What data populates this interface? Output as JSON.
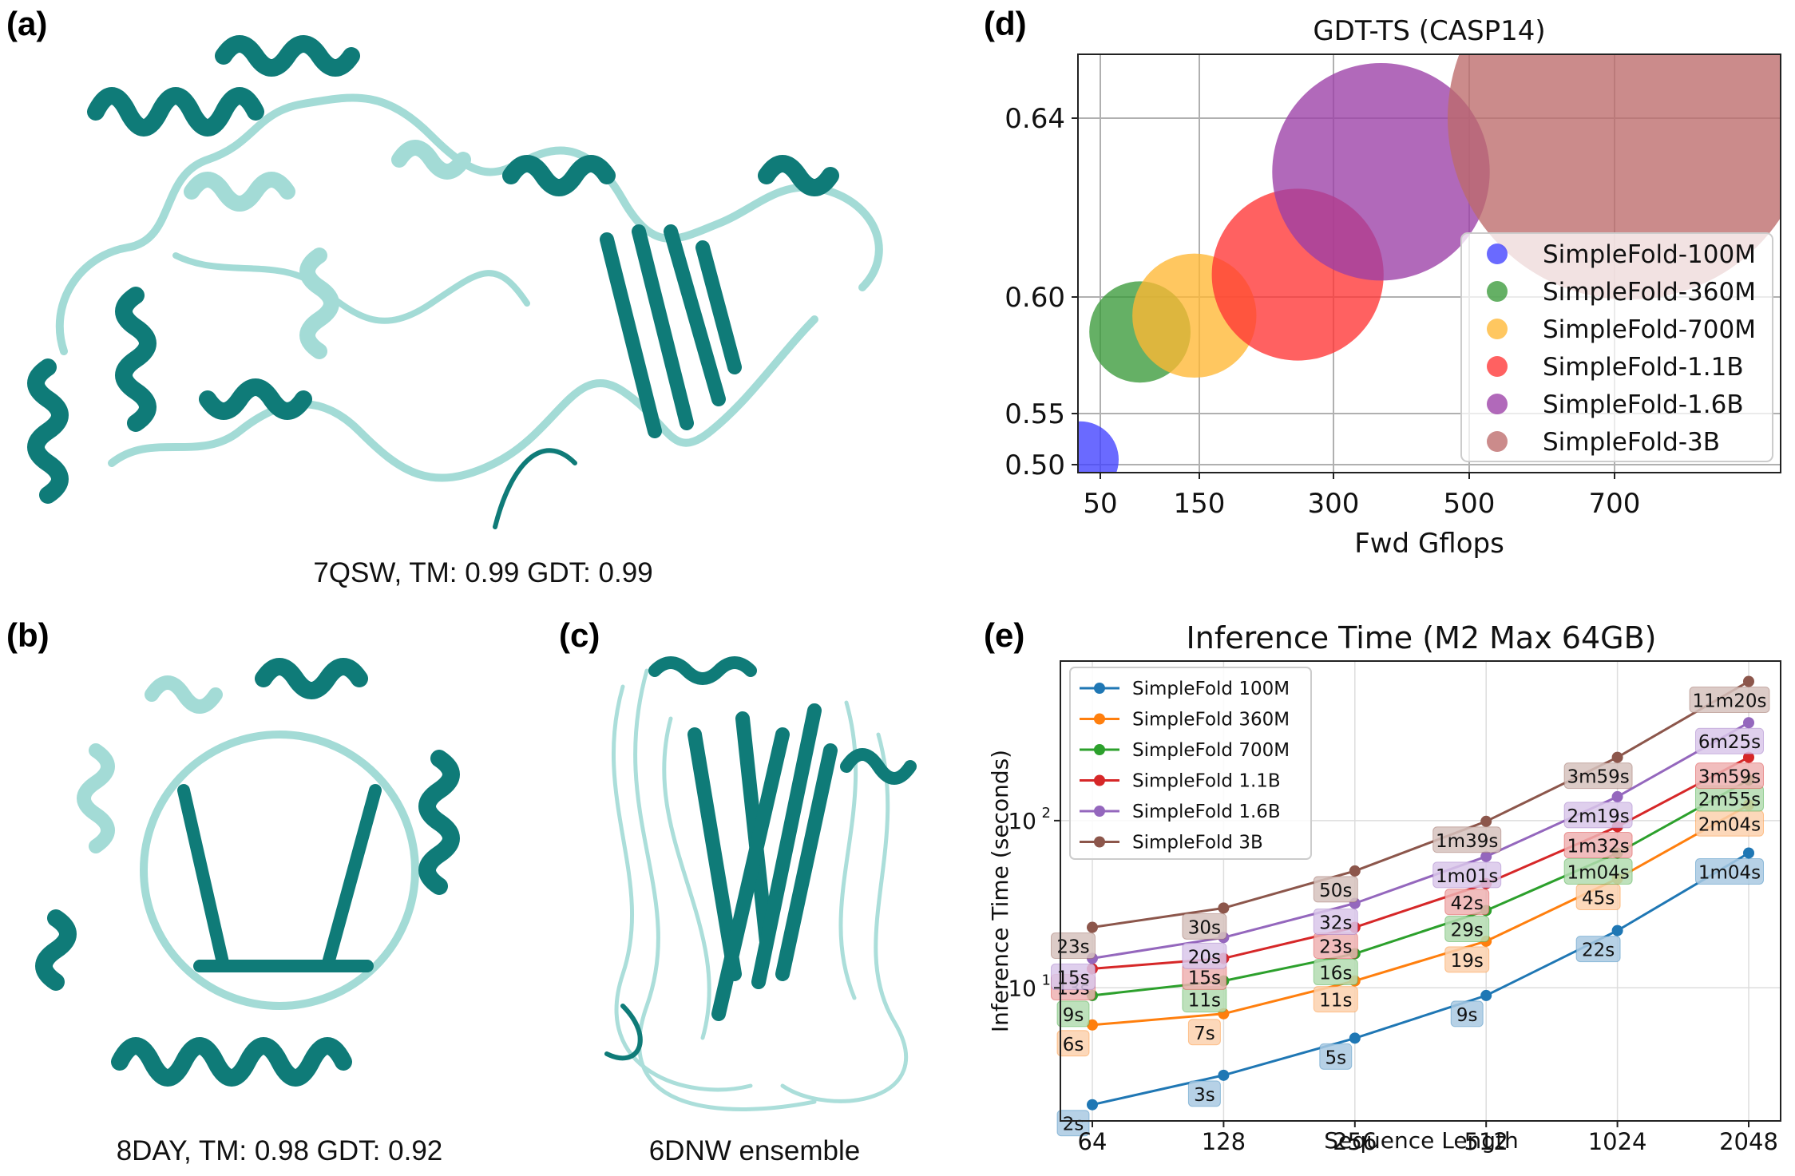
{
  "panels": {
    "a": {
      "label": "(a)",
      "caption": "7QSW, TM: 0.99 GDT: 0.99"
    },
    "b": {
      "label": "(b)",
      "caption": "8DAY, TM: 0.98 GDT: 0.92"
    },
    "c": {
      "label": "(c)",
      "caption": "6DNW ensemble"
    },
    "d": {
      "label": "(d)"
    },
    "e": {
      "label": "(e)"
    }
  },
  "colors": {
    "protein_dark": "#0f7b78",
    "protein_light": "#a3dbd6"
  },
  "chart_data": [
    {
      "type": "scatter",
      "title": "GDT-TS (CASP14)",
      "xlabel": "Fwd Gflops",
      "ylabel": "",
      "xticks": [
        "50",
        "150",
        "300",
        "500",
        "700"
      ],
      "yticks": [
        "0.50",
        "0.55",
        "0.60",
        "0.64"
      ],
      "grid": true,
      "legend_position": "lower-right",
      "series": [
        {
          "name": "SimpleFold-100M",
          "x": 30,
          "y": 0.505,
          "color": "#4040ff"
        },
        {
          "name": "SimpleFold-360M",
          "x": 90,
          "y": 0.585,
          "color": "#3a9a3a"
        },
        {
          "name": "SimpleFold-700M",
          "x": 145,
          "y": 0.592,
          "color": "#ffb733"
        },
        {
          "name": "SimpleFold-1.1B",
          "x": 260,
          "y": 0.605,
          "color": "#ff3535"
        },
        {
          "name": "SimpleFold-1.6B",
          "x": 370,
          "y": 0.628,
          "color": "#9b3fa6"
        },
        {
          "name": "SimpleFold-3B",
          "x": 720,
          "y": 0.64,
          "color": "#bc6a6a"
        }
      ]
    },
    {
      "type": "line",
      "title": "Inference Time (M2 Max 64GB)",
      "xlabel": "Sequence Length",
      "ylabel": "Inference Time (seconds)",
      "x": [
        64,
        128,
        256,
        512,
        1024,
        2048
      ],
      "xticks": [
        "64",
        "128",
        "256",
        "512",
        "1024",
        "2048"
      ],
      "yticks": [
        "10",
        "10"
      ],
      "ytick_powers": [
        "1",
        "2"
      ],
      "y_scale": "log",
      "grid": true,
      "legend_position": "upper-left",
      "series": [
        {
          "name": "SimpleFold 100M",
          "color": "#1f77b4",
          "values": [
            2,
            3,
            5,
            9,
            22,
            64
          ],
          "labels": [
            "2s",
            "3s",
            "5s",
            "9s",
            "22s",
            "1m04s"
          ]
        },
        {
          "name": "SimpleFold 360M",
          "color": "#ff7f0e",
          "values": [
            6,
            7,
            11,
            19,
            45,
            124
          ],
          "labels": [
            "6s",
            "7s",
            "11s",
            "19s",
            "45s",
            "2m04s"
          ]
        },
        {
          "name": "SimpleFold 700M",
          "color": "#2ca02c",
          "values": [
            9,
            11,
            16,
            29,
            64,
            175
          ],
          "labels": [
            "9s",
            "11s",
            "16s",
            "29s",
            "1m04s",
            "2m55s"
          ]
        },
        {
          "name": "SimpleFold 1.1B",
          "color": "#d62728",
          "values": [
            13,
            15,
            23,
            42,
            92,
            239
          ],
          "labels": [
            "13s",
            "15s",
            "23s",
            "42s",
            "1m32s",
            "3m59s"
          ]
        },
        {
          "name": "SimpleFold 1.6B",
          "color": "#9467bd",
          "values": [
            15,
            20,
            32,
            61,
            139,
            385
          ],
          "labels": [
            "15s",
            "20s",
            "32s",
            "1m01s",
            "2m19s",
            "6m25s"
          ]
        },
        {
          "name": "SimpleFold 3B",
          "color": "#8c564b",
          "values": [
            23,
            30,
            50,
            99,
            239,
            680
          ],
          "labels": [
            "23s",
            "30s",
            "50s",
            "1m39s",
            "3m59s",
            "11m20s"
          ]
        }
      ]
    }
  ]
}
